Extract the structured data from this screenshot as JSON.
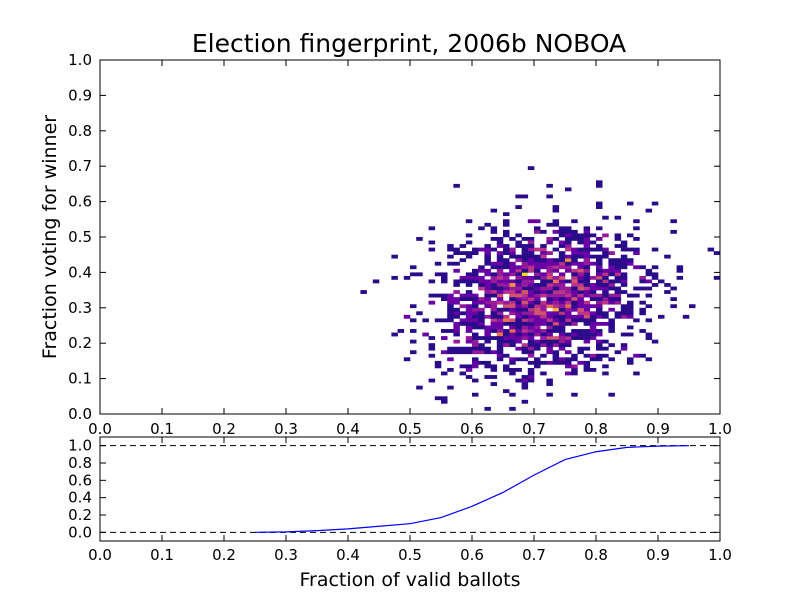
{
  "chart_data": [
    {
      "type": "heatmap",
      "title": "Election fingerprint, 2006b NOBOA",
      "xlabel": "",
      "ylabel": "Fraction voting for winner",
      "xlim": [
        0.0,
        1.0
      ],
      "ylim": [
        0.0,
        1.0
      ],
      "xticks": [
        "0.0",
        "0.1",
        "0.2",
        "0.3",
        "0.4",
        "0.5",
        "0.6",
        "0.7",
        "0.8",
        "0.9",
        "1.0"
      ],
      "yticks": [
        "0.0",
        "0.1",
        "0.2",
        "0.3",
        "0.4",
        "0.5",
        "0.6",
        "0.7",
        "0.8",
        "0.9",
        "1.0"
      ],
      "colormap": "plasma",
      "colors": {
        "low": "#2a0b8a",
        "mid": "#b8338a",
        "high": "#f0e020"
      },
      "bins": 100,
      "density_center": [
        0.71,
        0.32
      ],
      "density_spread": [
        0.085,
        0.1
      ],
      "grid": false
    },
    {
      "type": "line",
      "xlabel": "Fraction of valid ballots",
      "ylabel": "",
      "xlim": [
        0.0,
        1.0
      ],
      "ylim": [
        -0.1,
        1.1
      ],
      "xticks": [
        "0.0",
        "0.1",
        "0.2",
        "0.3",
        "0.4",
        "0.5",
        "0.6",
        "0.7",
        "0.8",
        "0.9",
        "1.0"
      ],
      "yticks": [
        "0.0",
        "0.2",
        "0.4",
        "0.6",
        "0.8",
        "1.0"
      ],
      "reference_lines": [
        0.0,
        1.0
      ],
      "line_color": "#0000ff",
      "x": [
        0.25,
        0.3,
        0.35,
        0.4,
        0.45,
        0.5,
        0.55,
        0.6,
        0.65,
        0.7,
        0.75,
        0.8,
        0.85,
        0.9,
        0.95
      ],
      "y": [
        0.0,
        0.005,
        0.02,
        0.04,
        0.07,
        0.1,
        0.17,
        0.3,
        0.46,
        0.66,
        0.84,
        0.93,
        0.98,
        0.995,
        1.0
      ],
      "grid": false
    }
  ]
}
